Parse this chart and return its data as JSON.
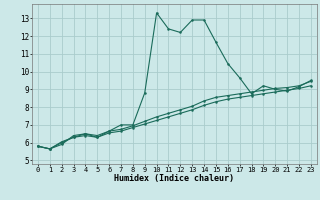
{
  "title": "",
  "xlabel": "Humidex (Indice chaleur)",
  "bg_color": "#cce8e8",
  "grid_color": "#aacccc",
  "line_color": "#1a6b5a",
  "xlim": [
    -0.5,
    23.5
  ],
  "ylim": [
    4.8,
    13.8
  ],
  "xticks": [
    0,
    1,
    2,
    3,
    4,
    5,
    6,
    7,
    8,
    9,
    10,
    11,
    12,
    13,
    14,
    15,
    16,
    17,
    18,
    19,
    20,
    21,
    22,
    23
  ],
  "yticks": [
    5,
    6,
    7,
    8,
    9,
    10,
    11,
    12,
    13
  ],
  "line1_x": [
    0,
    1,
    2,
    3,
    4,
    5,
    6,
    7,
    8,
    9,
    10,
    11,
    12,
    13,
    14,
    15,
    16,
    17,
    18,
    19,
    20,
    21,
    22,
    23
  ],
  "line1_y": [
    5.8,
    5.65,
    5.9,
    6.4,
    6.5,
    6.3,
    6.65,
    7.0,
    7.0,
    8.8,
    13.3,
    12.4,
    12.2,
    12.9,
    12.9,
    11.65,
    10.45,
    9.65,
    8.75,
    9.2,
    9.0,
    8.9,
    9.15,
    9.5
  ],
  "line2_x": [
    0,
    1,
    2,
    3,
    4,
    5,
    6,
    7,
    8,
    9,
    10,
    11,
    12,
    13,
    14,
    15,
    16,
    17,
    18,
    19,
    20,
    21,
    22,
    23
  ],
  "line2_y": [
    5.8,
    5.65,
    6.05,
    6.3,
    6.4,
    6.3,
    6.55,
    6.65,
    6.85,
    7.05,
    7.25,
    7.45,
    7.65,
    7.85,
    8.1,
    8.3,
    8.45,
    8.55,
    8.65,
    8.75,
    8.85,
    8.95,
    9.05,
    9.2
  ],
  "line3_x": [
    0,
    1,
    2,
    3,
    4,
    5,
    6,
    7,
    8,
    9,
    10,
    11,
    12,
    13,
    14,
    15,
    16,
    17,
    18,
    19,
    20,
    21,
    22,
    23
  ],
  "line3_y": [
    5.8,
    5.65,
    6.0,
    6.3,
    6.5,
    6.4,
    6.65,
    6.75,
    6.95,
    7.2,
    7.45,
    7.65,
    7.85,
    8.05,
    8.35,
    8.55,
    8.65,
    8.75,
    8.85,
    8.95,
    9.05,
    9.1,
    9.2,
    9.45
  ]
}
